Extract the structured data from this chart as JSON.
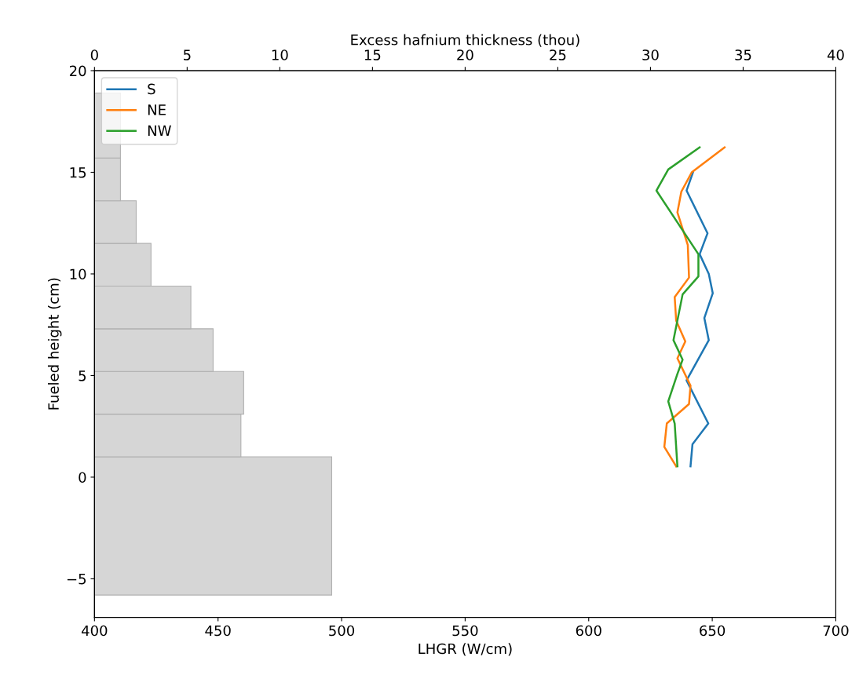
{
  "chart_data": [
    {
      "type": "histogram",
      "orientation": "horizontal",
      "xlabel": "Excess hafnium thickness (thou)",
      "xlim": [
        0,
        40
      ],
      "xticks": [
        0,
        5,
        10,
        15,
        20,
        25,
        30,
        35,
        40
      ],
      "ylim": [
        -6.9,
        20
      ],
      "tick_labels": "x",
      "color": "#d6d6d6",
      "bins": [
        -5.8,
        1.0,
        3.1,
        5.2,
        7.3,
        9.4,
        11.5,
        13.6,
        15.7,
        18.9
      ],
      "values": [
        12.8,
        7.9,
        8.05,
        6.4,
        5.2,
        3.05,
        2.25,
        1.4,
        1.4
      ]
    },
    {
      "type": "line",
      "xlabel": "LHGR (W/cm)",
      "ylabel": "Fueled height (cm)",
      "xlim": [
        400,
        700
      ],
      "xticks": [
        400,
        450,
        500,
        550,
        600,
        650,
        700
      ],
      "ylim": [
        -6.9,
        20
      ],
      "yticks": [
        {
          "value": -5,
          "label": "−5"
        },
        0,
        5,
        10,
        15,
        20
      ],
      "legend": "top left",
      "series": [
        {
          "name": "S",
          "color": "#1f77b4",
          "x": [
            641.2,
            642.0,
            648.4,
            639.6,
            648.6,
            646.8,
            650.2,
            648.6,
            644.9,
            648.1,
            639.6,
            642.2
          ],
          "values": [
            0.53,
            1.62,
            2.64,
            4.76,
            6.74,
            7.83,
            9.05,
            10.0,
            10.97,
            12.0,
            14.1,
            15.0
          ]
        },
        {
          "name": "NE",
          "color": "#ff7f0e",
          "x": [
            635.4,
            630.6,
            631.6,
            640.6,
            641.2,
            635.9,
            639.1,
            635.4,
            634.8,
            640.6,
            640.1,
            635.9,
            637.5,
            641.7,
            655
          ],
          "values": [
            0.53,
            1.49,
            2.64,
            3.6,
            4.5,
            5.85,
            6.68,
            7.7,
            8.86,
            9.82,
            11.42,
            13.03,
            14.05,
            15.0,
            16.23
          ]
        },
        {
          "name": "NW",
          "color": "#2ca02c",
          "x": [
            635.9,
            634.8,
            632.2,
            635.9,
            638.0,
            634.3,
            638.0,
            644.4,
            644.4,
            627.4,
            632.2,
            644.9
          ],
          "values": [
            0.53,
            2.64,
            3.73,
            5.08,
            5.78,
            6.74,
            8.99,
            9.88,
            10.97,
            14.1,
            15.14,
            16.23
          ]
        }
      ]
    }
  ]
}
